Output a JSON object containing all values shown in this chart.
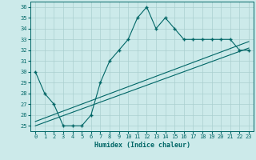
{
  "title": "",
  "xlabel": "Humidex (Indice chaleur)",
  "bg_color": "#cceaea",
  "grid_color": "#aacfcf",
  "line_color": "#006666",
  "xlim": [
    -0.5,
    23.5
  ],
  "ylim": [
    24.5,
    36.5
  ],
  "yticks": [
    25,
    26,
    27,
    28,
    29,
    30,
    31,
    32,
    33,
    34,
    35,
    36
  ],
  "xticks": [
    0,
    1,
    2,
    3,
    4,
    5,
    6,
    7,
    8,
    9,
    10,
    11,
    12,
    13,
    14,
    15,
    16,
    17,
    18,
    19,
    20,
    21,
    22,
    23
  ],
  "humidex": [
    30,
    28,
    27,
    25,
    25,
    25,
    26,
    29,
    31,
    32,
    33,
    35,
    36,
    34,
    35,
    34,
    33,
    33,
    33,
    33,
    33,
    33,
    32,
    32
  ],
  "line1_x": [
    0,
    23
  ],
  "line1_y": [
    25.0,
    32.2
  ],
  "line2_x": [
    0,
    23
  ],
  "line2_y": [
    25.4,
    32.8
  ]
}
